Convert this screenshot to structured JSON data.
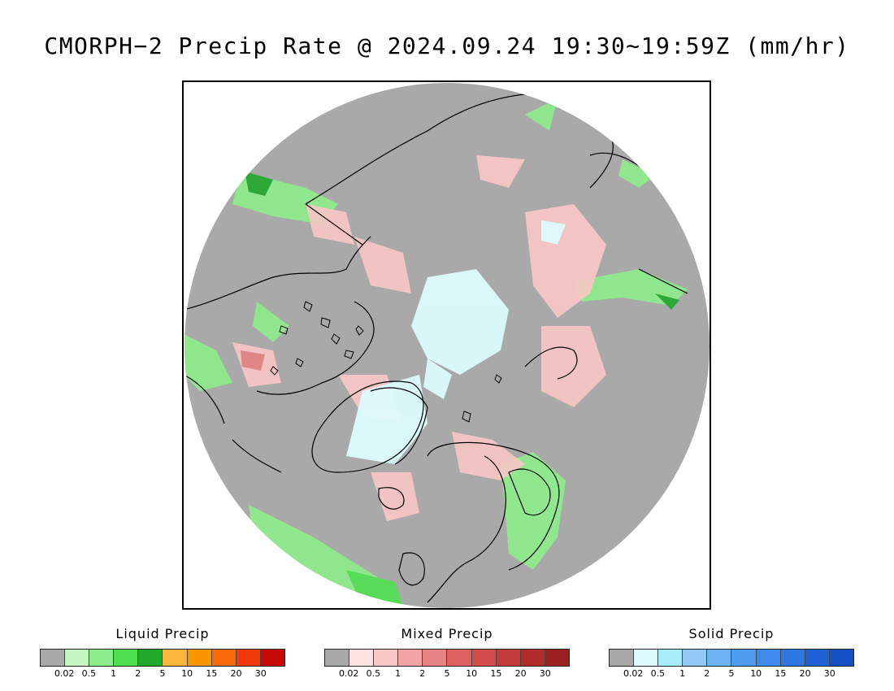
{
  "title": "CMORPH−2 Precip Rate @ 2024.09.24 19:30∼19:59Z (mm/hr)",
  "map": {
    "projection": "north polar stereographic",
    "background_color": "#a9a9a9",
    "coastline_color": "#000000"
  },
  "legends": [
    {
      "id": "liquid",
      "title": "Liquid Precip",
      "colors": [
        "#a9a9a9",
        "#c3f7bf",
        "#8ded8a",
        "#4fe04f",
        "#20a82a",
        "#f8b63c",
        "#f99700",
        "#f86a0a",
        "#f33a0a",
        "#c90808"
      ],
      "ticks": [
        "0.02",
        "0.5",
        "1",
        "2",
        "5",
        "10",
        "15",
        "20",
        "30"
      ]
    },
    {
      "id": "mixed",
      "title": "Mixed Precip",
      "colors": [
        "#a9a9a9",
        "#fde3e3",
        "#f9c6c6",
        "#f3a3a3",
        "#e88383",
        "#de6060",
        "#d24a4a",
        "#c33a3a",
        "#b02b2b",
        "#9b2020"
      ],
      "ticks": [
        "0.02",
        "0.5",
        "1",
        "2",
        "5",
        "10",
        "15",
        "20",
        "30"
      ]
    },
    {
      "id": "solid",
      "title": "Solid Precip",
      "colors": [
        "#a9a9a9",
        "#dcfbfe",
        "#a9ecf9",
        "#8fc8f5",
        "#6db4f3",
        "#4f9df0",
        "#3c8ae9",
        "#2e76e0",
        "#1f62d6",
        "#1550c7"
      ],
      "ticks": [
        "0.02",
        "0.5",
        "1",
        "2",
        "5",
        "10",
        "15",
        "20",
        "30"
      ]
    }
  ]
}
